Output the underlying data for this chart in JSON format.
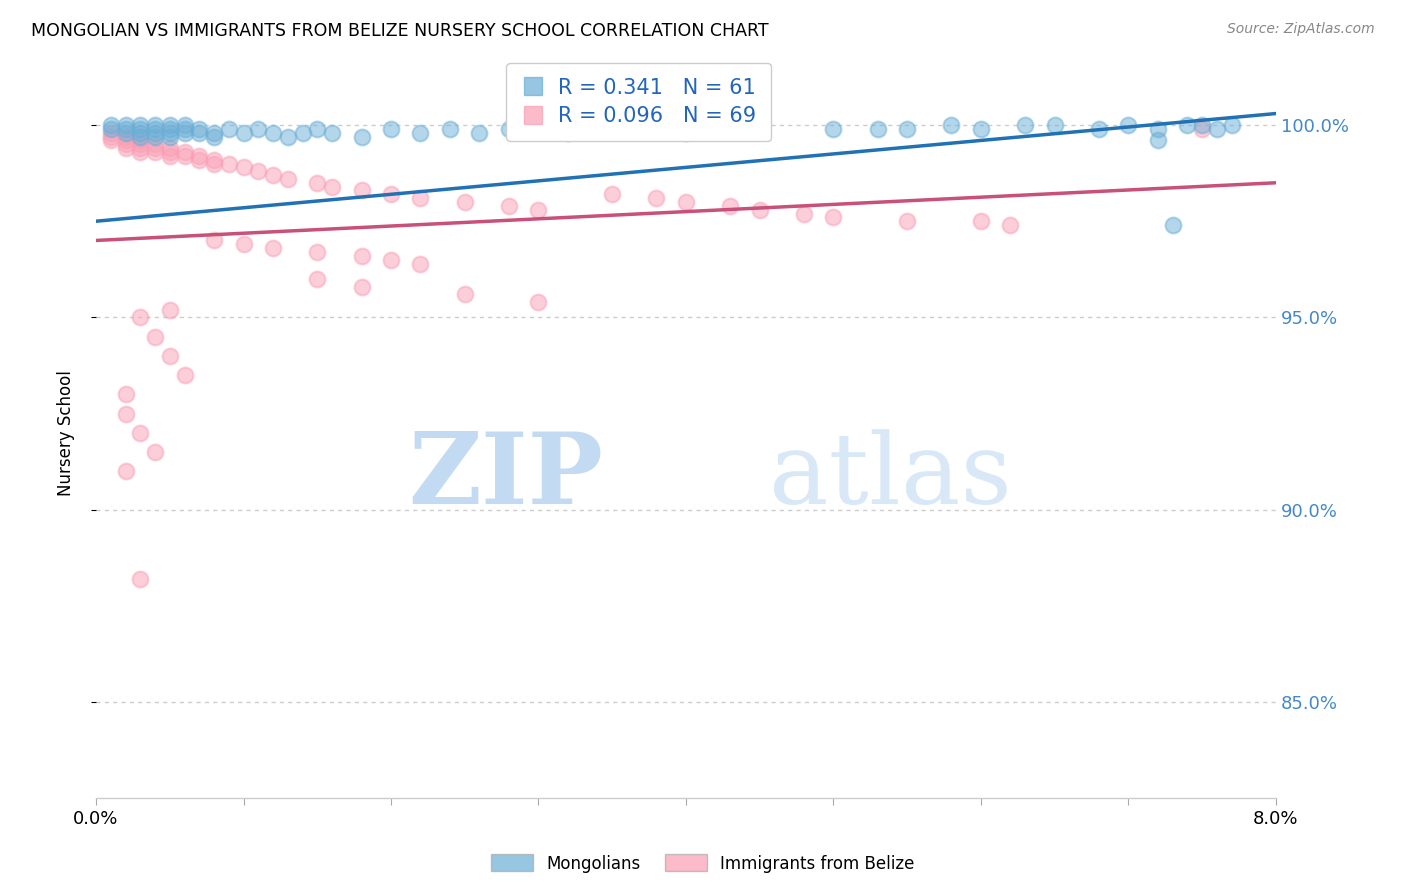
{
  "title": "MONGOLIAN VS IMMIGRANTS FROM BELIZE NURSERY SCHOOL CORRELATION CHART",
  "source": "Source: ZipAtlas.com",
  "ylabel": "Nursery School",
  "ytick_labels": [
    "85.0%",
    "90.0%",
    "95.0%",
    "100.0%"
  ],
  "ytick_values": [
    0.85,
    0.9,
    0.95,
    1.0
  ],
  "xlim": [
    0.0,
    0.08
  ],
  "ylim": [
    0.825,
    1.015
  ],
  "legend_blue_label": "Mongolians",
  "legend_pink_label": "Immigrants from Belize",
  "legend_r_blue": "R = 0.341",
  "legend_n_blue": "N = 61",
  "legend_r_pink": "R = 0.096",
  "legend_n_pink": "N = 69",
  "blue_color": "#6baed6",
  "pink_color": "#fa9fb5",
  "blue_line_color": "#2171b5",
  "pink_line_color": "#c9507a",
  "blue_scatter_x": [
    0.001,
    0.001,
    0.002,
    0.002,
    0.002,
    0.003,
    0.003,
    0.003,
    0.003,
    0.004,
    0.004,
    0.004,
    0.004,
    0.005,
    0.005,
    0.005,
    0.005,
    0.006,
    0.006,
    0.006,
    0.007,
    0.007,
    0.008,
    0.008,
    0.009,
    0.01,
    0.011,
    0.012,
    0.013,
    0.014,
    0.015,
    0.016,
    0.018,
    0.02,
    0.022,
    0.024,
    0.026,
    0.028,
    0.03,
    0.032,
    0.035,
    0.037,
    0.04,
    0.043,
    0.045,
    0.05,
    0.053,
    0.055,
    0.058,
    0.06,
    0.063,
    0.065,
    0.068,
    0.07,
    0.072,
    0.074,
    0.075,
    0.076,
    0.077,
    0.072,
    0.073
  ],
  "blue_scatter_y": [
    0.999,
    1.0,
    0.998,
    1.0,
    0.999,
    0.999,
    0.998,
    0.997,
    1.0,
    0.999,
    0.998,
    0.997,
    1.0,
    0.999,
    0.998,
    1.0,
    0.997,
    0.999,
    0.998,
    1.0,
    0.998,
    0.999,
    0.998,
    0.997,
    0.999,
    0.998,
    0.999,
    0.998,
    0.997,
    0.998,
    0.999,
    0.998,
    0.997,
    0.999,
    0.998,
    0.999,
    0.998,
    0.999,
    0.999,
    0.998,
    0.999,
    0.999,
    0.998,
    0.999,
    0.999,
    0.999,
    0.999,
    0.999,
    1.0,
    0.999,
    1.0,
    1.0,
    0.999,
    1.0,
    0.999,
    1.0,
    1.0,
    0.999,
    1.0,
    0.996,
    0.974
  ],
  "pink_scatter_x": [
    0.001,
    0.001,
    0.001,
    0.002,
    0.002,
    0.002,
    0.002,
    0.003,
    0.003,
    0.003,
    0.003,
    0.004,
    0.004,
    0.004,
    0.005,
    0.005,
    0.005,
    0.006,
    0.006,
    0.007,
    0.007,
    0.008,
    0.008,
    0.009,
    0.01,
    0.011,
    0.012,
    0.013,
    0.015,
    0.016,
    0.018,
    0.02,
    0.022,
    0.025,
    0.028,
    0.03,
    0.035,
    0.038,
    0.04,
    0.043,
    0.045,
    0.048,
    0.05,
    0.055,
    0.06,
    0.062,
    0.008,
    0.01,
    0.012,
    0.015,
    0.018,
    0.02,
    0.022,
    0.015,
    0.018,
    0.025,
    0.03,
    0.005,
    0.003,
    0.004,
    0.005,
    0.006,
    0.002,
    0.002,
    0.003,
    0.004,
    0.002,
    0.003,
    0.075
  ],
  "pink_scatter_y": [
    0.998,
    0.997,
    0.996,
    0.997,
    0.996,
    0.995,
    0.994,
    0.996,
    0.995,
    0.994,
    0.993,
    0.995,
    0.994,
    0.993,
    0.994,
    0.993,
    0.992,
    0.993,
    0.992,
    0.992,
    0.991,
    0.991,
    0.99,
    0.99,
    0.989,
    0.988,
    0.987,
    0.986,
    0.985,
    0.984,
    0.983,
    0.982,
    0.981,
    0.98,
    0.979,
    0.978,
    0.982,
    0.981,
    0.98,
    0.979,
    0.978,
    0.977,
    0.976,
    0.975,
    0.975,
    0.974,
    0.97,
    0.969,
    0.968,
    0.967,
    0.966,
    0.965,
    0.964,
    0.96,
    0.958,
    0.956,
    0.954,
    0.952,
    0.95,
    0.945,
    0.94,
    0.935,
    0.93,
    0.925,
    0.92,
    0.915,
    0.91,
    0.882,
    0.999
  ],
  "watermark_zip": "ZIP",
  "watermark_atlas": "atlas",
  "grid_color": "#cccccc"
}
